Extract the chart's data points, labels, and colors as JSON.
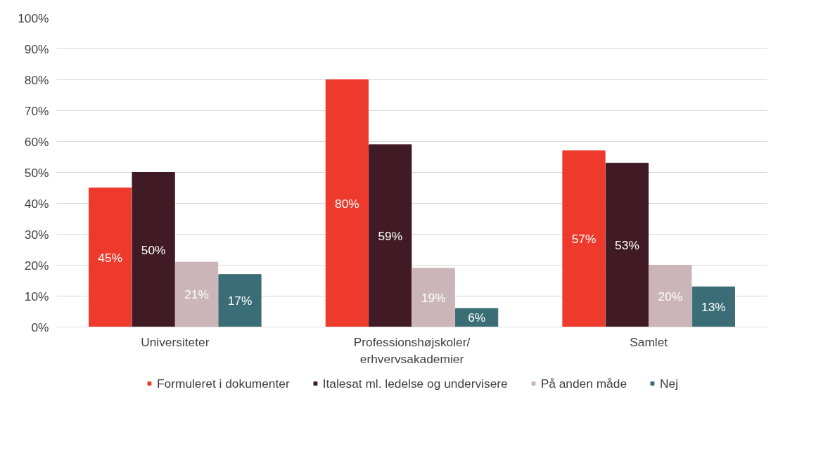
{
  "chart_data": {
    "type": "bar",
    "categories": [
      "Universiteter",
      "Professionshøjskoler/\nerhvervsakademier",
      "Samlet"
    ],
    "series": [
      {
        "name": "Formuleret i dokumenter",
        "color": "#ee3a2c",
        "values": [
          45,
          80,
          57
        ],
        "value_labels": [
          "45%",
          "80%",
          "57%"
        ]
      },
      {
        "name": "Italesat ml. ledelse og undervisere",
        "color": "#401a24",
        "values": [
          50,
          59,
          53
        ],
        "value_labels": [
          "50%",
          "59%",
          "53%"
        ]
      },
      {
        "name": "På anden måde",
        "color": "#cbb5b8",
        "values": [
          21,
          19,
          20
        ],
        "value_labels": [
          "21%",
          "19%",
          "20%"
        ]
      },
      {
        "name": "Nej",
        "color": "#3b6d77",
        "values": [
          17,
          6,
          13
        ],
        "value_labels": [
          "17%",
          "6%",
          "13%"
        ]
      }
    ],
    "ylim": [
      0,
      100
    ],
    "yticks": [
      {
        "value": 0,
        "label": "0%"
      },
      {
        "value": 10,
        "label": "10%"
      },
      {
        "value": 20,
        "label": "20%"
      },
      {
        "value": 30,
        "label": "30%"
      },
      {
        "value": 40,
        "label": "40%"
      },
      {
        "value": 50,
        "label": "50%"
      },
      {
        "value": 60,
        "label": "60%"
      },
      {
        "value": 70,
        "label": "70%"
      },
      {
        "value": 80,
        "label": "80%"
      },
      {
        "value": 90,
        "label": "90%"
      },
      {
        "value": 100,
        "label": "100%"
      }
    ],
    "grid": "y",
    "legend": "bottom"
  }
}
